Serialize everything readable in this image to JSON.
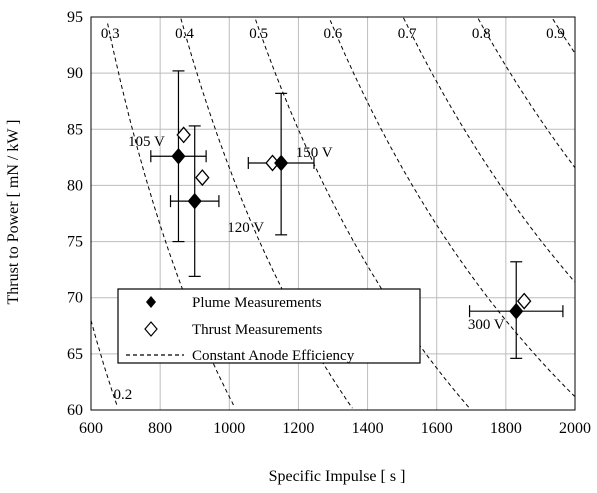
{
  "chart_data": {
    "type": "scatter",
    "xlabel": "Specific Impulse [ s ]",
    "ylabel": "Thrust to Power [ mN / kW ]",
    "xlim": [
      600,
      2000
    ],
    "ylim": [
      60,
      95
    ],
    "xticks": [
      600,
      800,
      1000,
      1200,
      1400,
      1600,
      1800,
      2000
    ],
    "yticks": [
      60,
      65,
      70,
      75,
      80,
      85,
      90,
      95
    ],
    "grid": true,
    "legend_position": "bottom-left",
    "legend": {
      "plume": "Plume Measurements",
      "thrust": "Thrust Measurements",
      "eff": "Constant Anode Efficiency"
    },
    "series": [
      {
        "name": "Plume Measurements",
        "marker": "filled-diamond",
        "points": [
          {
            "x": 853,
            "y": 82.6,
            "xerr": 80,
            "yerr_low": 7.6,
            "yerr_high": 7.6
          },
          {
            "x": 900,
            "y": 78.6,
            "xerr": 70,
            "yerr_low": 6.7,
            "yerr_high": 6.7
          },
          {
            "x": 1150,
            "y": 82.0,
            "xerr": 95,
            "yerr_low": 6.4,
            "yerr_high": 6.2
          },
          {
            "x": 1830,
            "y": 68.8,
            "xerr": 135,
            "yerr_low": 4.2,
            "yerr_high": 4.4
          }
        ]
      },
      {
        "name": "Thrust Measurements",
        "marker": "open-diamond",
        "points": [
          {
            "x": 868,
            "y": 84.5
          },
          {
            "x": 922,
            "y": 80.7
          },
          {
            "x": 1125,
            "y": 82.0
          },
          {
            "x": 1853,
            "y": 69.7
          }
        ]
      },
      {
        "name": "Constant Anode Efficiency",
        "style": "dashed",
        "efficiencies": [
          0.2,
          0.3,
          0.4,
          0.5,
          0.6,
          0.7,
          0.8,
          0.9
        ],
        "curve_labels": [
          "0.2",
          "0.3",
          "0.4",
          "0.5",
          "0.6",
          "0.7",
          "0.8",
          "0.9"
        ]
      }
    ],
    "annotations": [
      {
        "text": "105 V",
        "x": 853,
        "y": 82.6
      },
      {
        "text": "120 V",
        "x": 900,
        "y": 78.6
      },
      {
        "text": "150 V",
        "x": 1150,
        "y": 82.0
      },
      {
        "text": "300 V",
        "x": 1830,
        "y": 68.8
      }
    ]
  }
}
